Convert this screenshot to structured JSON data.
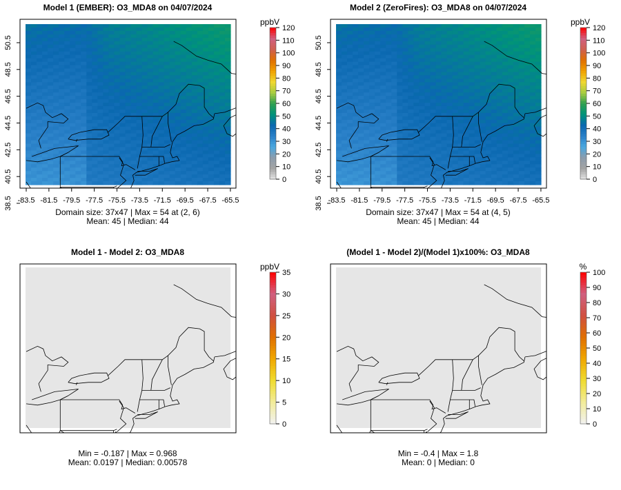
{
  "chart_data": [
    {
      "type": "heatmap",
      "title": "Model 1 (EMBER): O3_MDA8 on 04/07/2024",
      "unit": "ppbV",
      "xticks": [
        "-83.5",
        "-81.5",
        "-79.5",
        "-77.5",
        "-75.5",
        "-73.5",
        "-71.5",
        "-69.5",
        "-67.5",
        "-65.5"
      ],
      "yticks": [
        "38.5",
        "40.5",
        "42.5",
        "44.5",
        "46.5",
        "48.5",
        "50.5"
      ],
      "xlim": [
        -83.5,
        -65.5
      ],
      "ylim": [
        38.5,
        50.5
      ],
      "colorbar_ticks": [
        "0",
        "10",
        "20",
        "30",
        "40",
        "50",
        "60",
        "70",
        "80",
        "90",
        "100",
        "110",
        "120"
      ],
      "colorbar_range": [
        0,
        120
      ],
      "stat_line1": "Domain size: 37x47 | Max = 54 at (2, 6)",
      "stat_line2": "Mean: 45 |  Median: 44",
      "grid": [
        37,
        47
      ],
      "mean": 45,
      "max": 54
    },
    {
      "type": "heatmap",
      "title": "Model 2 (ZeroFires): O3_MDA8 on 04/07/2024",
      "unit": "ppbV",
      "xticks": [
        "-83.5",
        "-81.5",
        "-79.5",
        "-77.5",
        "-75.5",
        "-73.5",
        "-71.5",
        "-69.5",
        "-67.5",
        "-65.5"
      ],
      "yticks": [
        "38.5",
        "40.5",
        "42.5",
        "44.5",
        "46.5",
        "48.5",
        "50.5"
      ],
      "xlim": [
        -83.5,
        -65.5
      ],
      "ylim": [
        38.5,
        50.5
      ],
      "colorbar_ticks": [
        "0",
        "10",
        "20",
        "30",
        "40",
        "50",
        "60",
        "70",
        "80",
        "90",
        "100",
        "110",
        "120"
      ],
      "colorbar_range": [
        0,
        120
      ],
      "stat_line1": "Domain size: 37x47 | Max = 54 at (4, 5)",
      "stat_line2": "Mean: 45 |  Median: 44",
      "grid": [
        37,
        47
      ],
      "mean": 45,
      "max": 54
    },
    {
      "type": "heatmap",
      "title": "Model 1 - Model 2: O3_MDA8",
      "unit": "ppbV",
      "colorbar_ticks": [
        "0",
        "5",
        "10",
        "15",
        "20",
        "25",
        "30",
        "35"
      ],
      "colorbar_range": [
        0,
        35
      ],
      "stat_line1": "Min = -0.187 | Max = 0.968",
      "stat_line2": "Mean: 0.0197 |  Median: 0.00578"
    },
    {
      "type": "heatmap",
      "title": "(Model 1 - Model 2)/(Model 1)x100%: O3_MDA8",
      "unit": "%",
      "colorbar_ticks": [
        "0",
        "10",
        "20",
        "30",
        "40",
        "50",
        "60",
        "70",
        "80",
        "90",
        "100"
      ],
      "colorbar_range": [
        0,
        100
      ],
      "stat_line1": "Min = -0.4 | Max = 1.8",
      "stat_line2": "Mean: 0 |  Median: 0"
    }
  ],
  "colors": {
    "conc_scale": [
      "#e4e4e4",
      "#a4a4a4",
      "#8c9cac",
      "#4aa8e0",
      "#2a80c8",
      "#0a68b0",
      "#00937a",
      "#30a050",
      "#a8cc40",
      "#f0d830",
      "#f0a000",
      "#e07000",
      "#d06050",
      "#d06080",
      "#ff0000"
    ],
    "diff_scale": [
      "#f2f2f2",
      "#f2ec9a",
      "#f0dc30",
      "#f0a800",
      "#e07000",
      "#d05040",
      "#d06080",
      "#ff0000"
    ],
    "empty_area": "#e6e6e6"
  }
}
